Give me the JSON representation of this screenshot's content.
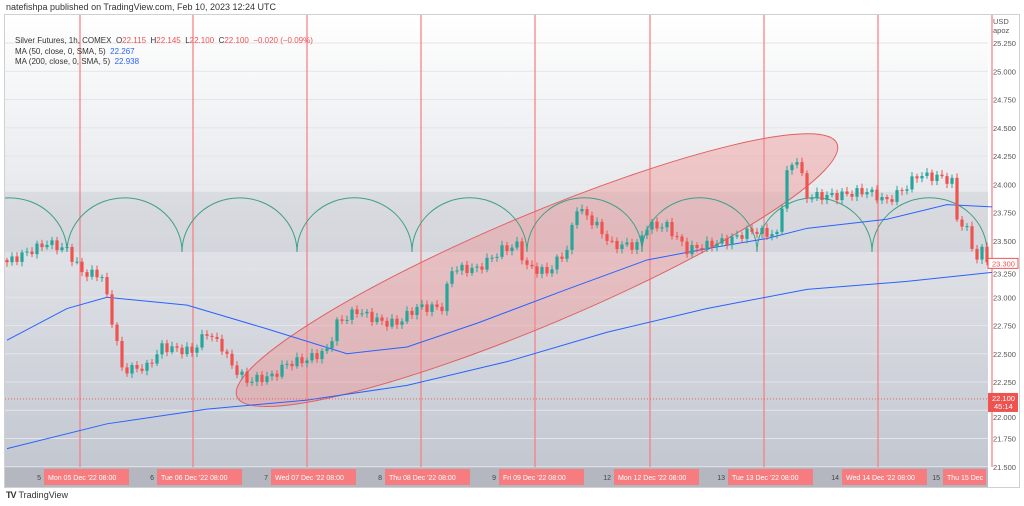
{
  "header": {
    "published": "natefishpa published on TradingView.com, Feb 10, 2023 12:24 UTC"
  },
  "legend": {
    "symbol": "Silver Futures, 1h, COMEX",
    "o_label": "O",
    "o": "22.115",
    "h_label": "H",
    "h": "22.145",
    "l_label": "L",
    "l": "22.100",
    "c_label": "C",
    "c": "22.100",
    "change": "−0.020 (−0.09%)",
    "ma50_label": "MA (50, close, 0, SMA, 5)",
    "ma50": "22.267",
    "ma200_label": "MA (200, close, 0, SMA, 5)",
    "ma200": "22.938"
  },
  "brand": {
    "logo": "TV",
    "name": "TradingView"
  },
  "colors": {
    "up": "#26a69a",
    "down": "#ef5350",
    "ma": "#2962ff",
    "vline": "#f77c80",
    "arc": "#3f9f86",
    "ellipse": "#f28b8b"
  },
  "chart_data": {
    "type": "candlestick",
    "title": "Silver Futures, 1h, COMEX",
    "currency": "USD",
    "currency_sub": "apoz",
    "ylim": [
      21.5,
      25.25
    ],
    "y_ticks": [
      "25.250",
      "25.000",
      "24.750",
      "24.500",
      "24.250",
      "24.000",
      "23.750",
      "23.500",
      "23.250",
      "23.000",
      "22.750",
      "22.500",
      "22.250",
      "22.000",
      "21.750",
      "21.500"
    ],
    "last_price_label": "23.300",
    "last_price": 23.3,
    "marker_price_label": "22.100",
    "marker_countdown": "45:14",
    "marker_price": 22.1,
    "x_ticks": [
      {
        "day": "5",
        "label": "Mon 05 Dec '22   08:00",
        "hour": 14.6
      },
      {
        "day": "6",
        "label": "Tue 06 Dec '22   08:00",
        "hour": 37.2
      },
      {
        "day": "7",
        "label": "Wed 07 Dec '22   08:00",
        "hour": 60
      },
      {
        "day": "8",
        "label": "Thu 08 Dec '22   08:00",
        "hour": 82.8
      },
      {
        "day": "9",
        "label": "Fri 09 Dec '22   08:00",
        "hour": 105.6
      },
      {
        "day": "12",
        "label": "Mon 12 Dec '22   08:00",
        "hour": 128.6
      },
      {
        "day": "13",
        "label": "Tue 13 Dec '22   08:00",
        "hour": 151.4
      },
      {
        "day": "14",
        "label": "Wed 14 Dec '22   08:00",
        "hour": 174.2
      },
      {
        "day": "15",
        "label": "Thu 15 Dec",
        "hour": 197
      }
    ],
    "close_waypoints": [
      [
        0,
        23.31
      ],
      [
        8,
        23.48
      ],
      [
        12,
        23.42
      ],
      [
        15,
        23.22
      ],
      [
        19,
        23.19
      ],
      [
        20,
        22.99
      ],
      [
        22,
        22.6
      ],
      [
        23,
        22.36
      ],
      [
        28,
        22.38
      ],
      [
        31,
        22.56
      ],
      [
        37,
        22.52
      ],
      [
        40,
        22.69
      ],
      [
        43,
        22.56
      ],
      [
        45,
        22.39
      ],
      [
        48,
        22.26
      ],
      [
        53,
        22.3
      ],
      [
        56,
        22.41
      ],
      [
        60,
        22.45
      ],
      [
        64,
        22.53
      ],
      [
        66,
        22.77
      ],
      [
        70,
        22.88
      ],
      [
        75,
        22.78
      ],
      [
        78,
        22.77
      ],
      [
        82,
        22.91
      ],
      [
        87,
        22.91
      ],
      [
        89,
        23.25
      ],
      [
        94,
        23.25
      ],
      [
        99,
        23.42
      ],
      [
        102,
        23.46
      ],
      [
        104,
        23.27
      ],
      [
        108,
        23.22
      ],
      [
        112,
        23.42
      ],
      [
        114,
        23.8
      ],
      [
        118,
        23.63
      ],
      [
        121,
        23.46
      ],
      [
        126,
        23.46
      ],
      [
        128,
        23.63
      ],
      [
        132,
        23.63
      ],
      [
        136,
        23.42
      ],
      [
        140,
        23.46
      ],
      [
        144,
        23.5
      ],
      [
        149,
        23.59
      ],
      [
        154,
        23.55
      ],
      [
        156,
        24.1
      ],
      [
        158,
        24.23
      ],
      [
        160,
        23.89
      ],
      [
        166,
        23.9
      ],
      [
        172,
        23.94
      ],
      [
        176,
        23.85
      ],
      [
        180,
        23.98
      ],
      [
        182,
        24.08
      ],
      [
        187,
        24.06
      ],
      [
        189,
        24.02
      ],
      [
        190,
        23.7
      ],
      [
        192,
        23.59
      ],
      [
        194,
        23.33
      ],
      [
        195,
        23.42
      ],
      [
        197,
        23.28
      ]
    ],
    "series": [
      {
        "name": "MA (50, close, 0, SMA, 5)",
        "points": [
          [
            0,
            22.62
          ],
          [
            12,
            22.9
          ],
          [
            20,
            23.0
          ],
          [
            36,
            22.93
          ],
          [
            52,
            22.72
          ],
          [
            68,
            22.5
          ],
          [
            80,
            22.56
          ],
          [
            94,
            22.77
          ],
          [
            112,
            23.07
          ],
          [
            128,
            23.33
          ],
          [
            140,
            23.43
          ],
          [
            152,
            23.52
          ],
          [
            160,
            23.61
          ],
          [
            176,
            23.69
          ],
          [
            188,
            23.82
          ],
          [
            197,
            23.8
          ]
        ]
      },
      {
        "name": "MA (200, close, 0, SMA, 5)",
        "points": [
          [
            0,
            21.66
          ],
          [
            20,
            21.88
          ],
          [
            40,
            22.01
          ],
          [
            60,
            22.09
          ],
          [
            80,
            22.22
          ],
          [
            100,
            22.43
          ],
          [
            120,
            22.69
          ],
          [
            140,
            22.9
          ],
          [
            160,
            23.07
          ],
          [
            180,
            23.14
          ],
          [
            197,
            23.22
          ]
        ]
      }
    ],
    "arc_baseline": 23.4,
    "arc_peak": 23.88,
    "arc_cusps_hours": [
      12,
      35,
      58,
      81,
      104,
      127,
      150,
      173,
      196
    ],
    "ellipse_from": [
      46,
      22.12
    ],
    "ellipse_to": [
      166,
      24.36
    ]
  }
}
